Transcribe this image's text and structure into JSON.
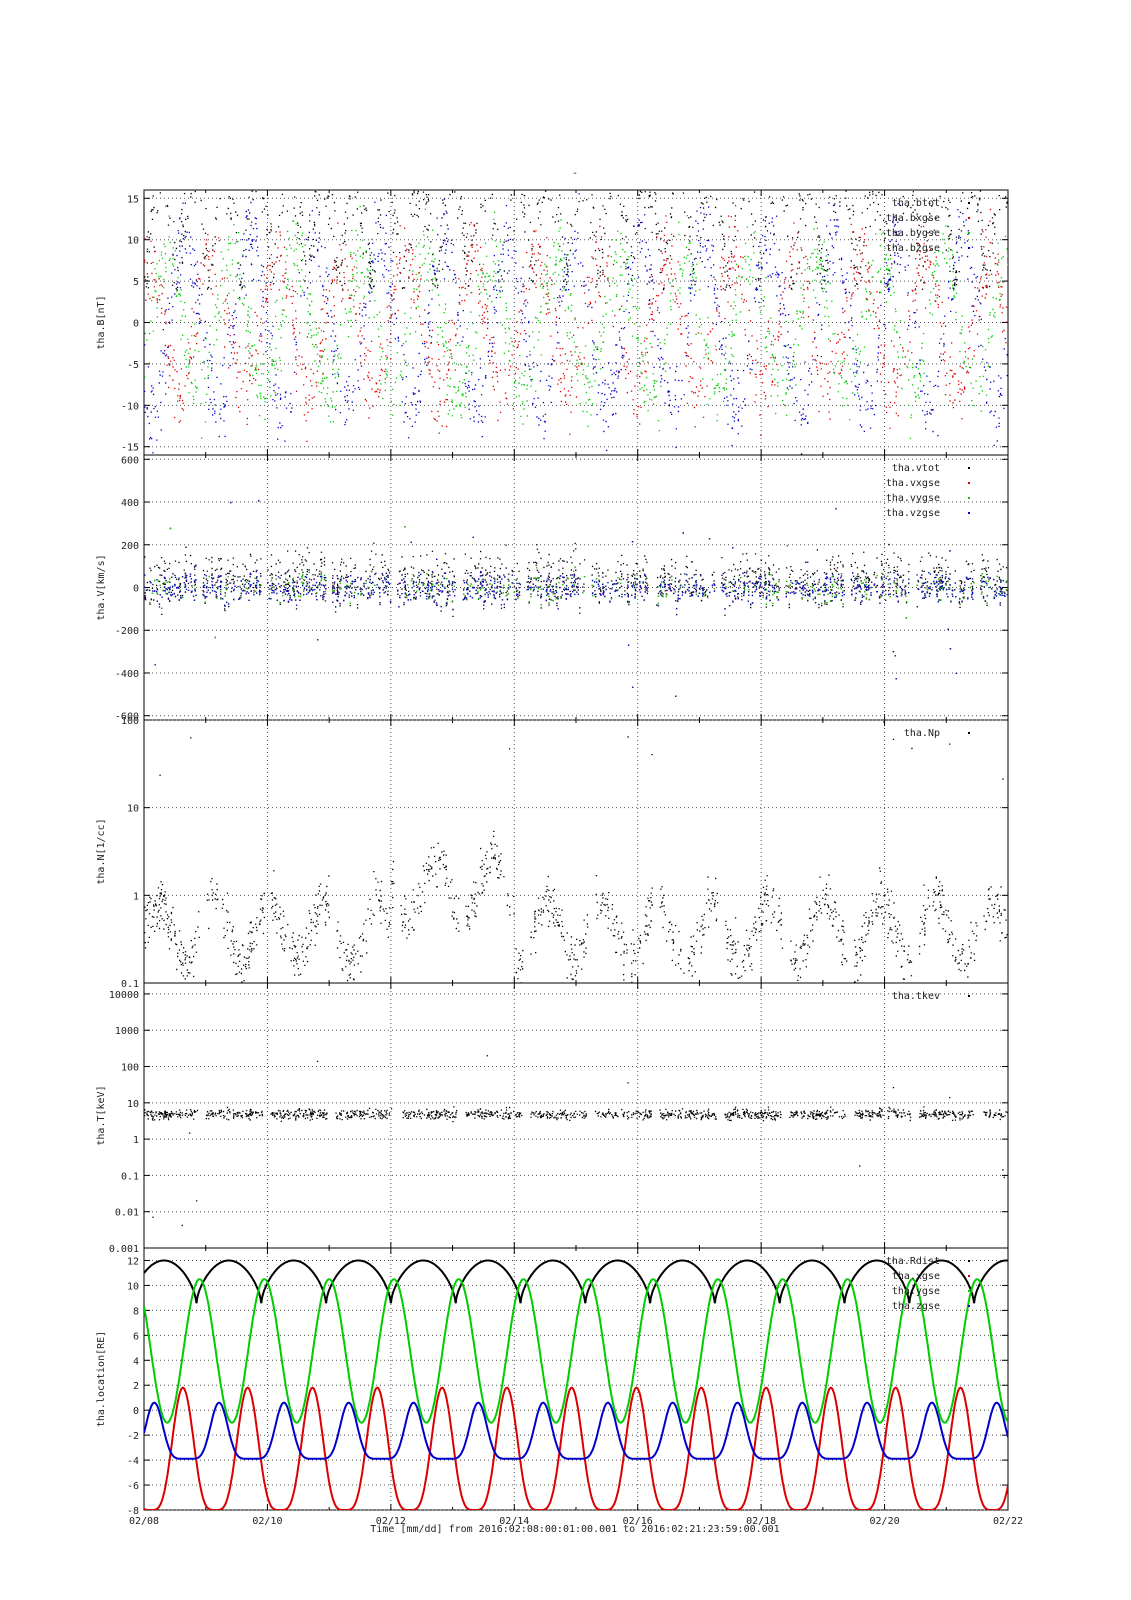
{
  "figure": {
    "top_mark": "-",
    "x_title": "Time [mm/dd]  from 2016:02:08:00:01:00.001  to  2016:02:21:23:59:00.001"
  },
  "chart_data": [
    {
      "type": "scatter",
      "ylabel": "tha.B[nT]",
      "ylim": [
        -16,
        16
      ],
      "yscale": "linear",
      "yticks": [
        -15,
        -10,
        -5,
        0,
        5,
        10,
        15
      ],
      "xlim": [
        "2016-02-08",
        "2016-02-22"
      ],
      "grid": true,
      "legend": "top-right",
      "series": [
        {
          "name": "tha.btot",
          "color": "#000000"
        },
        {
          "name": "tha.bxgse",
          "color": "#dd0000"
        },
        {
          "name": "tha.bygse",
          "color": "#00cc00"
        },
        {
          "name": "tha.bzgse",
          "color": "#0000cc"
        }
      ]
    },
    {
      "type": "scatter",
      "ylabel": "tha.V[km/s]",
      "ylim": [
        -620,
        620
      ],
      "yscale": "linear",
      "yticks": [
        -600,
        -400,
        -200,
        0,
        200,
        400,
        600
      ],
      "xlim": [
        "2016-02-08",
        "2016-02-22"
      ],
      "grid": true,
      "legend": "top-right",
      "series": [
        {
          "name": "tha.vtot",
          "color": "#000000"
        },
        {
          "name": "tha.vxgse",
          "color": "#dd0000"
        },
        {
          "name": "tha.vygse",
          "color": "#00cc00"
        },
        {
          "name": "tha.vzgse",
          "color": "#0000cc"
        }
      ]
    },
    {
      "type": "scatter",
      "ylabel": "tha.N[1/cc]",
      "ylim": [
        0.1,
        100
      ],
      "yscale": "log",
      "yticks": [
        0.1,
        1,
        10,
        100
      ],
      "xlim": [
        "2016-02-08",
        "2016-02-22"
      ],
      "grid": true,
      "legend": "top-right",
      "series": [
        {
          "name": "tha.Np",
          "color": "#000000"
        }
      ]
    },
    {
      "type": "scatter",
      "ylabel": "tha.T[keV]",
      "ylim": [
        0.001,
        20000
      ],
      "yscale": "log",
      "yticks": [
        0.001,
        0.01,
        0.1,
        1,
        10,
        100,
        1000,
        10000
      ],
      "xlim": [
        "2016-02-08",
        "2016-02-22"
      ],
      "grid": true,
      "legend": "top-right",
      "series": [
        {
          "name": "tha.tkev",
          "color": "#000000"
        }
      ]
    },
    {
      "type": "line",
      "ylabel": "tha.location[RE]",
      "ylim": [
        -8,
        13
      ],
      "yscale": "linear",
      "yticks": [
        -8,
        -6,
        -4,
        -2,
        0,
        2,
        4,
        6,
        8,
        10,
        12
      ],
      "xlim": [
        "2016-02-08",
        "2016-02-22"
      ],
      "xticks": [
        "02/08",
        "02/10",
        "02/12",
        "02/14",
        "02/16",
        "02/18",
        "02/20",
        "02/22"
      ],
      "grid": true,
      "legend": "top-right",
      "series": [
        {
          "name": "tha.Rdist",
          "color": "#000000",
          "amplitude_range": [
            8.5,
            12
          ]
        },
        {
          "name": "tha.xgse",
          "color": "#dd0000",
          "amplitude_range": [
            -8,
            1.8
          ]
        },
        {
          "name": "tha.ygse",
          "color": "#00cc00",
          "amplitude_range": [
            -1,
            10.5
          ]
        },
        {
          "name": "tha.zgse",
          "color": "#0000cc",
          "amplitude_range": [
            -3.9,
            0.6
          ]
        }
      ]
    }
  ]
}
